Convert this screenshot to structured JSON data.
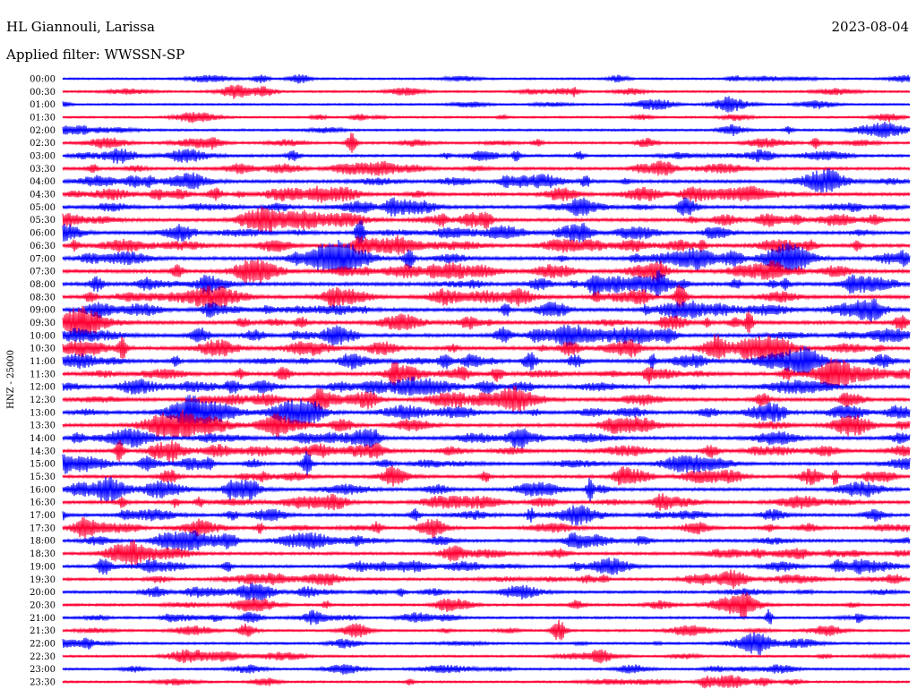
{
  "header": {
    "station": "HL Giannouli, Larissa",
    "date": "2023-08-04",
    "filter": "Applied filter: WWSSN-SP"
  },
  "chart_data": {
    "type": "line",
    "title": "HL Giannouli, Larissa",
    "subtitle": "Applied filter: WWSSN-SP",
    "date": "2023-08-04",
    "ylabel": "HNZ - 25000",
    "trace_colors": [
      "#0000ff",
      "#ff0033"
    ],
    "rows": [
      {
        "label": "00:00",
        "activity": 0.35
      },
      {
        "label": "00:30",
        "activity": 0.4
      },
      {
        "label": "01:00",
        "activity": 0.35
      },
      {
        "label": "01:30",
        "activity": 0.35
      },
      {
        "label": "02:00",
        "activity": 0.45
      },
      {
        "label": "02:30",
        "activity": 0.55
      },
      {
        "label": "03:00",
        "activity": 0.65
      },
      {
        "label": "03:30",
        "activity": 0.75
      },
      {
        "label": "04:00",
        "activity": 0.85
      },
      {
        "label": "04:30",
        "activity": 0.85
      },
      {
        "label": "05:00",
        "activity": 0.9
      },
      {
        "label": "05:30",
        "activity": 0.9
      },
      {
        "label": "06:00",
        "activity": 0.9
      },
      {
        "label": "06:30",
        "activity": 0.95
      },
      {
        "label": "07:00",
        "activity": 1.0
      },
      {
        "label": "07:30",
        "activity": 1.0
      },
      {
        "label": "08:00",
        "activity": 1.0
      },
      {
        "label": "08:30",
        "activity": 1.0
      },
      {
        "label": "09:00",
        "activity": 1.0
      },
      {
        "label": "09:30",
        "activity": 1.0
      },
      {
        "label": "10:00",
        "activity": 1.0
      },
      {
        "label": "10:30",
        "activity": 1.0
      },
      {
        "label": "11:00",
        "activity": 1.0
      },
      {
        "label": "11:30",
        "activity": 1.0
      },
      {
        "label": "12:00",
        "activity": 0.95
      },
      {
        "label": "12:30",
        "activity": 0.95
      },
      {
        "label": "13:00",
        "activity": 0.95
      },
      {
        "label": "13:30",
        "activity": 0.9
      },
      {
        "label": "14:00",
        "activity": 0.9
      },
      {
        "label": "14:30",
        "activity": 0.85
      },
      {
        "label": "15:00",
        "activity": 0.85
      },
      {
        "label": "15:30",
        "activity": 0.85
      },
      {
        "label": "16:00",
        "activity": 0.85
      },
      {
        "label": "16:30",
        "activity": 0.85
      },
      {
        "label": "17:00",
        "activity": 0.8
      },
      {
        "label": "17:30",
        "activity": 0.8
      },
      {
        "label": "18:00",
        "activity": 0.8
      },
      {
        "label": "18:30",
        "activity": 0.75
      },
      {
        "label": "19:00",
        "activity": 0.7
      },
      {
        "label": "19:30",
        "activity": 0.7
      },
      {
        "label": "20:00",
        "activity": 0.65
      },
      {
        "label": "20:30",
        "activity": 0.6
      },
      {
        "label": "21:00",
        "activity": 0.55
      },
      {
        "label": "21:30",
        "activity": 0.5
      },
      {
        "label": "22:00",
        "activity": 0.5
      },
      {
        "label": "22:30",
        "activity": 0.45
      },
      {
        "label": "23:00",
        "activity": 0.45
      },
      {
        "label": "23:30",
        "activity": 0.4
      }
    ]
  }
}
